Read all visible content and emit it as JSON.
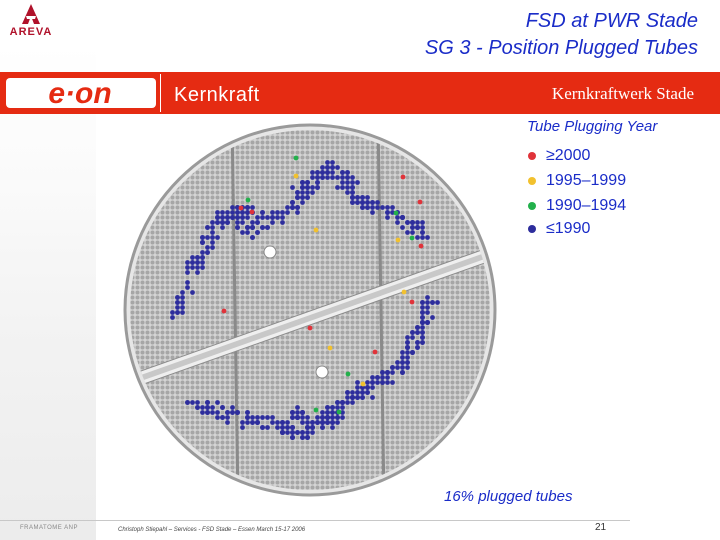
{
  "header": {
    "logo_text": "AREVA",
    "title_line1": "FSD at PWR Stade",
    "title_line2": "SG 3 - Position Plugged Tubes"
  },
  "banner": {
    "brand": "e·on",
    "division": "Kernkraft",
    "plant": "Kernkraftwerk Stade",
    "color": "#e52b12"
  },
  "legend": {
    "title": "Tube Plugging Year",
    "items": [
      {
        "label": "≥2000",
        "color": "#e0333a"
      },
      {
        "label": "1995–1999",
        "color": "#f2c12e"
      },
      {
        "label": "1990–1994",
        "color": "#22b04b"
      },
      {
        "label": "≤1990",
        "color": "#2d2d9c"
      }
    ]
  },
  "diagram": {
    "plugged_summary": "16% plugged tubes",
    "tube_color": "#a9a9a9"
  },
  "footer": {
    "left": "FRAMATOME ANP",
    "center": "Christoph Stiepahl – Services - FSD Stade – Essen March 15-17 2006",
    "page": "21"
  }
}
